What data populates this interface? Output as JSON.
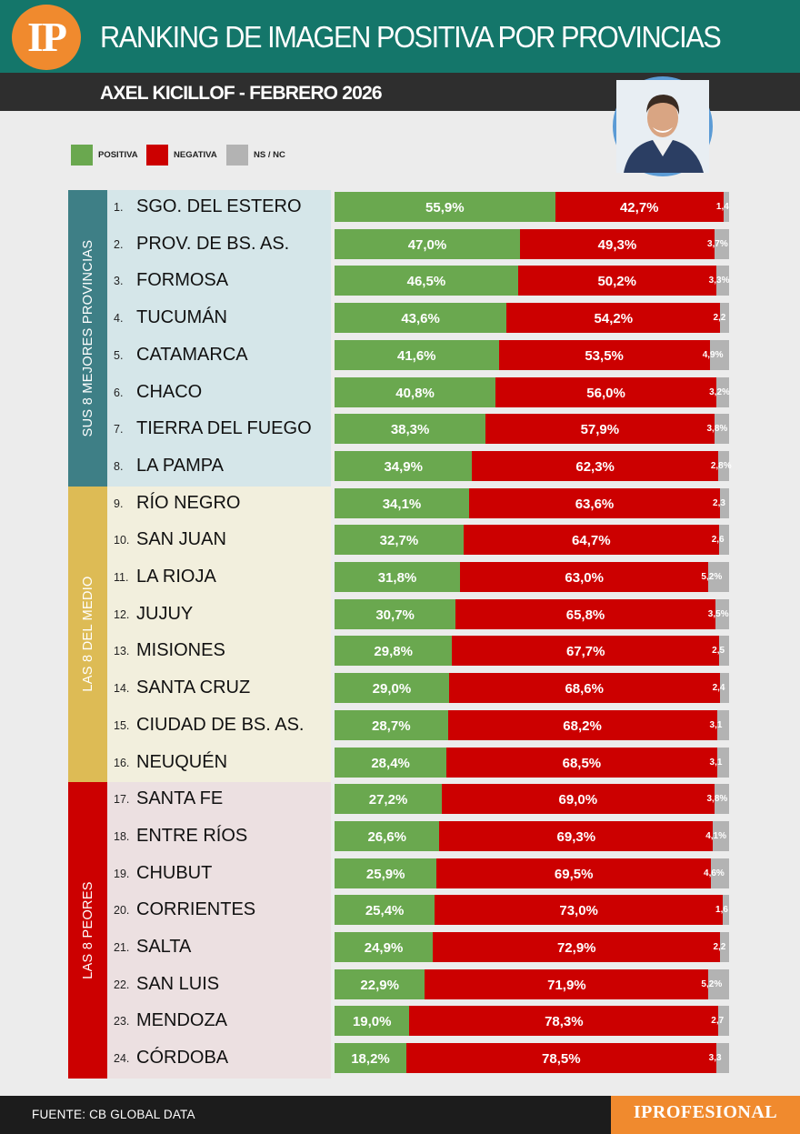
{
  "header": {
    "logo": "IP",
    "title": "RANKING DE IMAGEN POSITIVA POR PROVINCIAS",
    "subtitle": "AXEL KICILLOF - FEBRERO 2026"
  },
  "legend": [
    {
      "label": "POSITIVA",
      "color": "#6aa84f"
    },
    {
      "label": "NEGATIVA",
      "color": "#cc0000"
    },
    {
      "label": "NS / NC",
      "color": "#b3b3b3"
    }
  ],
  "groups": [
    {
      "label": "SUS 8 MEJORES PROVINCIAS",
      "color": "#3e7f86",
      "bg": "#d5e6e9"
    },
    {
      "label": "LAS 8 DEL MEDIO",
      "color": "#ddbb55",
      "bg": "#f2efdd"
    },
    {
      "label": "LAS 8 PEORES",
      "color": "#cc0000",
      "bg": "#ece0e1"
    }
  ],
  "chart_data": {
    "type": "bar",
    "orientation": "horizontal-stacked",
    "title": "RANKING DE IMAGEN POSITIVA POR PROVINCIAS",
    "subtitle": "AXEL KICILLOF - FEBRERO 2026",
    "categories": [
      "SGO. DEL ESTERO",
      "PROV. DE BS. AS.",
      "FORMOSA",
      "TUCUMÁN",
      "CATAMARCA",
      "CHACO",
      "TIERRA DEL FUEGO",
      "LA PAMPA",
      "RÍO NEGRO",
      "SAN JUAN",
      "LA RIOJA",
      "JUJUY",
      "MISIONES",
      "SANTA CRUZ",
      "CIUDAD DE BS. AS.",
      "NEUQUÉN",
      "SANTA FE",
      "ENTRE RÍOS",
      "CHUBUT",
      "CORRIENTES",
      "SALTA",
      "SAN LUIS",
      "MENDOZA",
      "CÓRDOBA"
    ],
    "ranks": [
      "1.",
      "2.",
      "3.",
      "4.",
      "5.",
      "6.",
      "7.",
      "8.",
      "9.",
      "10.",
      "11.",
      "12.",
      "13.",
      "14.",
      "15.",
      "16.",
      "17.",
      "18.",
      "19.",
      "20.",
      "21.",
      "22.",
      "23.",
      "24."
    ],
    "series": [
      {
        "name": "POSITIVA",
        "color": "#6aa84f",
        "values": [
          55.9,
          47.0,
          46.5,
          43.6,
          41.6,
          40.8,
          38.3,
          34.9,
          34.1,
          32.7,
          31.8,
          30.7,
          29.8,
          29.0,
          28.7,
          28.4,
          27.2,
          26.6,
          25.9,
          25.4,
          24.9,
          22.9,
          19.0,
          18.2
        ],
        "labels": [
          "55,9%",
          "47,0%",
          "46,5%",
          "43,6%",
          "41,6%",
          "40,8%",
          "38,3%",
          "34,9%",
          "34,1%",
          "32,7%",
          "31,8%",
          "30,7%",
          "29,8%",
          "29,0%",
          "28,7%",
          "28,4%",
          "27,2%",
          "26,6%",
          "25,9%",
          "25,4%",
          "24,9%",
          "22,9%",
          "19,0%",
          "18,2%"
        ]
      },
      {
        "name": "NEGATIVA",
        "color": "#cc0000",
        "values": [
          42.7,
          49.3,
          50.2,
          54.2,
          53.5,
          56.0,
          57.9,
          62.3,
          63.6,
          64.7,
          63.0,
          65.8,
          67.7,
          68.6,
          68.2,
          68.5,
          69.0,
          69.3,
          69.5,
          73.0,
          72.9,
          71.9,
          78.3,
          78.5
        ],
        "labels": [
          "42,7%",
          "49,3%",
          "50,2%",
          "54,2%",
          "53,5%",
          "56,0%",
          "57,9%",
          "62,3%",
          "63,6%",
          "64,7%",
          "63,0%",
          "65,8%",
          "67,7%",
          "68,6%",
          "68,2%",
          "68,5%",
          "69,0%",
          "69,3%",
          "69,5%",
          "73,0%",
          "72,9%",
          "71,9%",
          "78,3%",
          "78,5%"
        ]
      },
      {
        "name": "NS / NC",
        "color": "#b3b3b3",
        "values": [
          1.4,
          3.7,
          3.3,
          2.2,
          4.9,
          3.2,
          3.8,
          2.8,
          2.3,
          2.6,
          5.2,
          3.5,
          2.5,
          2.4,
          3.1,
          3.1,
          3.8,
          4.1,
          4.6,
          1.6,
          2.2,
          5.2,
          2.7,
          3.3
        ],
        "labels": [
          "1,4",
          "3,7%",
          "3,3%",
          "2,2",
          "4,9%",
          "3,2%",
          "3,8%",
          "2,8%",
          "2,3",
          "2,6",
          "5,2%",
          "3,5%",
          "2,5",
          "2,4",
          "3,1",
          "3,1",
          "3,8%",
          "4,1%",
          "4,6%",
          "1,6",
          "2,2",
          "5,2%",
          "2,7",
          "3,3"
        ]
      }
    ],
    "xlim": [
      0,
      100
    ]
  },
  "footer": {
    "source": "FUENTE: CB GLOBAL DATA",
    "brand": "IPROFESIONAL"
  }
}
